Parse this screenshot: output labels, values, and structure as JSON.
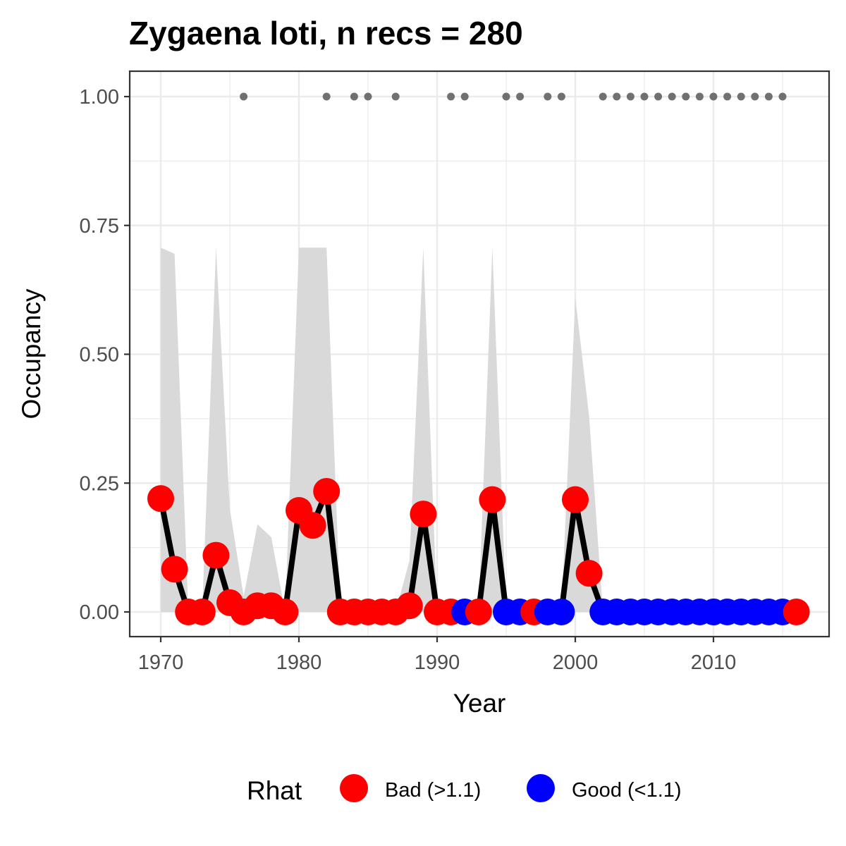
{
  "chart_data": {
    "type": "line",
    "title": "Zygaena loti, n recs = 280",
    "xlabel": "Year",
    "ylabel": "Occupancy",
    "xlim": [
      1967.9,
      1977.9
    ],
    "ylim": [
      -0.0475,
      1.0475
    ],
    "x_ticks": [
      1970,
      1980,
      1990,
      2000,
      2010
    ],
    "x_tick_labels": [
      "1970",
      "1980",
      "1990",
      "2000",
      "2010"
    ],
    "y_ticks": [
      0,
      0.25,
      0.5,
      0.75,
      1.0
    ],
    "y_tick_labels": [
      "0.00",
      "0.25",
      "0.50",
      "0.75",
      "1.00"
    ],
    "grid": true,
    "colors": {
      "Bad": "#ff0000",
      "Good": "#0000ff",
      "line": "#000000",
      "ribbon": "#d9d9d9",
      "records": "#707070",
      "panel_border": "#333333",
      "grid": "#ebebeb"
    },
    "legend": {
      "title": "Rhat",
      "position": "bottom",
      "entries": [
        {
          "key": "Bad",
          "label": "Bad (>1.1)"
        },
        {
          "key": "Good",
          "label": "Good (<1.1)"
        }
      ]
    },
    "series": {
      "occupancy": [
        {
          "x": 1970,
          "y": 0.22,
          "rhat": "Bad",
          "lower": 0.0,
          "upper": 0.707
        },
        {
          "x": 1971,
          "y": 0.083,
          "rhat": "Bad",
          "lower": 0.0,
          "upper": 0.695
        },
        {
          "x": 1972,
          "y": 0.0,
          "rhat": "Bad",
          "lower": 0.0,
          "upper": 0.0
        },
        {
          "x": 1973,
          "y": 0.0,
          "rhat": "Bad",
          "lower": 0.0,
          "upper": 0.0
        },
        {
          "x": 1974,
          "y": 0.11,
          "rhat": "Bad",
          "lower": 0.0,
          "upper": 0.707
        },
        {
          "x": 1975,
          "y": 0.018,
          "rhat": "Bad",
          "lower": 0.0,
          "upper": 0.2
        },
        {
          "x": 1976,
          "y": 0.0,
          "rhat": "Bad",
          "lower": 0.0,
          "upper": 0.03
        },
        {
          "x": 1977,
          "y": 0.012,
          "rhat": "Bad",
          "lower": 0.0,
          "upper": 0.17
        },
        {
          "x": 1978,
          "y": 0.012,
          "rhat": "Bad",
          "lower": 0.0,
          "upper": 0.145
        },
        {
          "x": 1979,
          "y": 0.0,
          "rhat": "Bad",
          "lower": 0.0,
          "upper": 0.0
        },
        {
          "x": 1980,
          "y": 0.197,
          "rhat": "Bad",
          "lower": 0.0,
          "upper": 0.707
        },
        {
          "x": 1981,
          "y": 0.168,
          "rhat": "Bad",
          "lower": 0.0,
          "upper": 0.707
        },
        {
          "x": 1982,
          "y": 0.234,
          "rhat": "Bad",
          "lower": 0.0,
          "upper": 0.707
        },
        {
          "x": 1983,
          "y": 0.0,
          "rhat": "Bad",
          "lower": 0.0,
          "upper": 0.0
        },
        {
          "x": 1984,
          "y": 0.0,
          "rhat": "Bad",
          "lower": 0.0,
          "upper": 0.0
        },
        {
          "x": 1985,
          "y": 0.0,
          "rhat": "Bad",
          "lower": 0.0,
          "upper": 0.0
        },
        {
          "x": 1986,
          "y": 0.0,
          "rhat": "Bad",
          "lower": 0.0,
          "upper": 0.0
        },
        {
          "x": 1987,
          "y": 0.0,
          "rhat": "Bad",
          "lower": 0.0,
          "upper": 0.0
        },
        {
          "x": 1988,
          "y": 0.012,
          "rhat": "Bad",
          "lower": 0.0,
          "upper": 0.1
        },
        {
          "x": 1989,
          "y": 0.19,
          "rhat": "Bad",
          "lower": 0.0,
          "upper": 0.707
        },
        {
          "x": 1990,
          "y": 0.0,
          "rhat": "Bad",
          "lower": 0.0,
          "upper": 0.0
        },
        {
          "x": 1991,
          "y": 0.0,
          "rhat": "Bad",
          "lower": 0.0,
          "upper": 0.0
        },
        {
          "x": 1992,
          "y": 0.0,
          "rhat": "Good",
          "lower": 0.0,
          "upper": 0.0
        },
        {
          "x": 1993,
          "y": 0.0,
          "rhat": "Bad",
          "lower": 0.0,
          "upper": 0.0
        },
        {
          "x": 1994,
          "y": 0.218,
          "rhat": "Bad",
          "lower": 0.0,
          "upper": 0.707
        },
        {
          "x": 1995,
          "y": 0.0,
          "rhat": "Good",
          "lower": 0.0,
          "upper": 0.0
        },
        {
          "x": 1996,
          "y": 0.0,
          "rhat": "Good",
          "lower": 0.0,
          "upper": 0.0
        },
        {
          "x": 1997,
          "y": 0.0,
          "rhat": "Bad",
          "lower": 0.0,
          "upper": 0.0
        },
        {
          "x": 1998,
          "y": 0.0,
          "rhat": "Good",
          "lower": 0.0,
          "upper": 0.0
        },
        {
          "x": 1999,
          "y": 0.0,
          "rhat": "Good",
          "lower": 0.0,
          "upper": 0.0
        },
        {
          "x": 2000,
          "y": 0.218,
          "rhat": "Bad",
          "lower": 0.0,
          "upper": 0.61
        },
        {
          "x": 2001,
          "y": 0.075,
          "rhat": "Bad",
          "lower": 0.0,
          "upper": 0.38
        },
        {
          "x": 2002,
          "y": 0.0,
          "rhat": "Good",
          "lower": 0.0,
          "upper": 0.0
        },
        {
          "x": 2003,
          "y": 0.0,
          "rhat": "Good",
          "lower": 0.0,
          "upper": 0.0
        },
        {
          "x": 2004,
          "y": 0.0,
          "rhat": "Good",
          "lower": 0.0,
          "upper": 0.0
        },
        {
          "x": 2005,
          "y": 0.0,
          "rhat": "Good",
          "lower": 0.0,
          "upper": 0.0
        },
        {
          "x": 2006,
          "y": 0.0,
          "rhat": "Good",
          "lower": 0.0,
          "upper": 0.0
        },
        {
          "x": 2007,
          "y": 0.0,
          "rhat": "Good",
          "lower": 0.0,
          "upper": 0.0
        },
        {
          "x": 2008,
          "y": 0.0,
          "rhat": "Good",
          "lower": 0.0,
          "upper": 0.0
        },
        {
          "x": 2009,
          "y": 0.0,
          "rhat": "Good",
          "lower": 0.0,
          "upper": 0.0
        },
        {
          "x": 2010,
          "y": 0.0,
          "rhat": "Good",
          "lower": 0.0,
          "upper": 0.0
        },
        {
          "x": 2011,
          "y": 0.0,
          "rhat": "Good",
          "lower": 0.0,
          "upper": 0.0
        },
        {
          "x": 2012,
          "y": 0.0,
          "rhat": "Good",
          "lower": 0.0,
          "upper": 0.0
        },
        {
          "x": 2013,
          "y": 0.0,
          "rhat": "Good",
          "lower": 0.0,
          "upper": 0.0
        },
        {
          "x": 2014,
          "y": 0.0,
          "rhat": "Good",
          "lower": 0.0,
          "upper": 0.0
        },
        {
          "x": 2015,
          "y": 0.0,
          "rhat": "Good",
          "lower": 0.0,
          "upper": 0.0
        },
        {
          "x": 2016,
          "y": 0.0,
          "rhat": "Bad",
          "lower": 0.0,
          "upper": 0.0
        }
      ],
      "record_years": [
        1976,
        1982,
        1984,
        1985,
        1987,
        1991,
        1992,
        1995,
        1996,
        1998,
        1999,
        2002,
        2003,
        2004,
        2005,
        2006,
        2007,
        2008,
        2009,
        2010,
        2011,
        2012,
        2013,
        2014,
        2015
      ],
      "record_y": 1.0
    }
  }
}
